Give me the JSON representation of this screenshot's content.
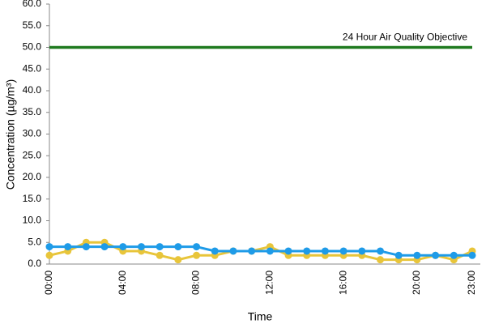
{
  "chart_data": {
    "type": "line",
    "x_label": "Time",
    "y_label": "Concentration (µg/m³)",
    "categories": [
      "00:00",
      null,
      null,
      null,
      "04:00",
      null,
      null,
      null,
      "08:00",
      null,
      null,
      null,
      "12:00",
      null,
      null,
      null,
      "16:00",
      null,
      null,
      null,
      "20:00",
      null,
      null,
      "23:00"
    ],
    "series": [
      {
        "name": "24 Hour Air Quality Objective",
        "color": "#1f7a1f",
        "markers": false,
        "values": [
          50,
          50,
          50,
          50,
          50,
          50,
          50,
          50,
          50,
          50,
          50,
          50,
          50,
          50,
          50,
          50,
          50,
          50,
          50,
          50,
          50,
          50,
          50,
          50
        ]
      },
      {
        "color": "#e8c53a",
        "markers": true,
        "values": [
          2,
          3,
          5,
          5,
          3,
          3,
          2,
          1,
          2,
          2,
          3,
          3,
          4,
          2,
          2,
          2,
          2,
          2,
          1,
          1,
          1,
          2,
          1,
          3
        ]
      },
      {
        "color": "#1e9be8",
        "markers": true,
        "values": [
          4,
          4,
          4,
          4,
          4,
          4,
          4,
          4,
          4,
          3,
          3,
          3,
          3,
          3,
          3,
          3,
          3,
          3,
          3,
          2,
          2,
          2,
          2,
          2
        ]
      }
    ],
    "ylim": [
      0,
      60
    ],
    "yticks": [
      {
        "value": 0,
        "label": "0.0"
      },
      {
        "value": 5,
        "label": "5.0"
      },
      {
        "value": 10,
        "label": "10.0"
      },
      {
        "value": 15,
        "label": "15.0"
      },
      {
        "value": 20,
        "label": "20.0"
      },
      {
        "value": 25,
        "label": "25.0"
      },
      {
        "value": 30,
        "label": "30.0"
      },
      {
        "value": 35,
        "label": "35.0"
      },
      {
        "value": 40,
        "label": "40.0"
      },
      {
        "value": 45,
        "label": "45.0"
      },
      {
        "value": 50,
        "label": "50.0"
      },
      {
        "value": 55,
        "label": "55.0"
      },
      {
        "value": 60,
        "label": "60.0"
      }
    ],
    "grid": false
  }
}
